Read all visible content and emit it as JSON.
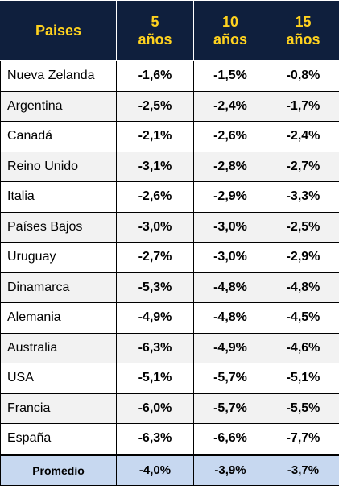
{
  "header": {
    "country_col": "Paises",
    "cols": [
      {
        "num": "5",
        "unit": "años"
      },
      {
        "num": "10",
        "unit": "años"
      },
      {
        "num": "15",
        "unit": "años"
      }
    ]
  },
  "rows": [
    {
      "country": "Nueva Zelanda",
      "v5": "-1,6%",
      "v10": "-1,5%",
      "v15": "-0,8%"
    },
    {
      "country": "Argentina",
      "v5": "-2,5%",
      "v10": "-2,4%",
      "v15": "-1,7%"
    },
    {
      "country": "Canadá",
      "v5": "-2,1%",
      "v10": "-2,6%",
      "v15": "-2,4%"
    },
    {
      "country": "Reino Unido",
      "v5": "-3,1%",
      "v10": "-2,8%",
      "v15": "-2,7%"
    },
    {
      "country": "Italia",
      "v5": "-2,6%",
      "v10": "-2,9%",
      "v15": "-3,3%"
    },
    {
      "country": "Países Bajos",
      "v5": "-3,0%",
      "v10": "-3,0%",
      "v15": "-2,5%"
    },
    {
      "country": "Uruguay",
      "v5": "-2,7%",
      "v10": "-3,0%",
      "v15": "-2,9%"
    },
    {
      "country": "Dinamarca",
      "v5": "-5,3%",
      "v10": "-4,8%",
      "v15": "-4,8%"
    },
    {
      "country": "Alemania",
      "v5": "-4,9%",
      "v10": "-4,8%",
      "v15": "-4,5%"
    },
    {
      "country": "Australia",
      "v5": "-6,3%",
      "v10": "-4,9%",
      "v15": "-4,6%"
    },
    {
      "country": "USA",
      "v5": "-5,1%",
      "v10": "-5,7%",
      "v15": "-5,1%"
    },
    {
      "country": "Francia",
      "v5": "-6,0%",
      "v10": "-5,7%",
      "v15": "-5,5%"
    },
    {
      "country": "España",
      "v5": "-6,3%",
      "v10": "-6,6%",
      "v15": "-7,7%"
    }
  ],
  "average": {
    "label": "Promedio",
    "v5": "-4,0%",
    "v10": "-3,9%",
    "v15": "-3,7%"
  },
  "colors": {
    "header_bg": "#0f1f3d",
    "header_text": "#ffd21f",
    "average_bg": "#c7d8f0"
  }
}
